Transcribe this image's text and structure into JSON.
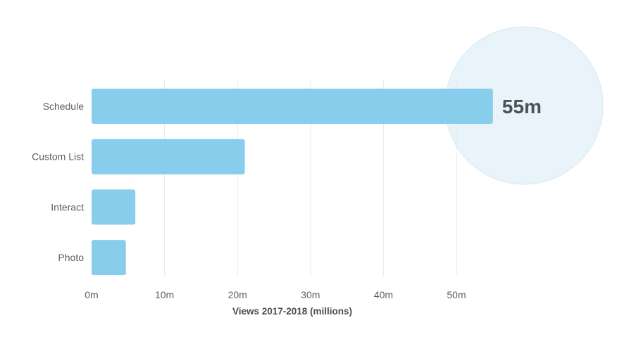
{
  "chart_data": {
    "type": "bar",
    "orientation": "horizontal",
    "categories": [
      "Schedule",
      "Custom List",
      "Interact",
      "Photo"
    ],
    "values": [
      55,
      21,
      6,
      4.7
    ],
    "xlabel": "Views 2017-2018 (millions)",
    "xlim": [
      0,
      50
    ],
    "xticks": [
      0,
      10,
      20,
      30,
      40,
      50
    ],
    "tick_labels": [
      "0m",
      "10m",
      "20m",
      "30m",
      "40m",
      "50m"
    ],
    "grid": true,
    "legend": "none",
    "highlight": {
      "category": "Schedule",
      "label": "55m"
    },
    "colors": {
      "bar": "#88cdec",
      "grid": "#e6e9ec",
      "highlight_circle": "#e9f3fa",
      "highlight_circle_stroke": "#d6e8f5",
      "text": "#5b5f63",
      "callout_text": "#4e5256"
    }
  }
}
